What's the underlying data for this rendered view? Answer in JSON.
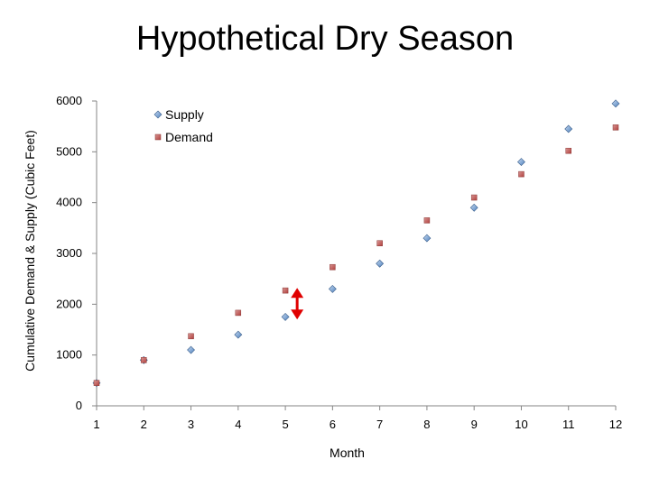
{
  "chart_data": {
    "type": "scatter",
    "title": "Hypothetical Dry Season",
    "xlabel": "Month",
    "ylabel": "Cumulative Demand & Supply (Cubic Feet)",
    "x": [
      1,
      2,
      3,
      4,
      5,
      6,
      7,
      8,
      9,
      10,
      11,
      12
    ],
    "xticks": [
      "1",
      "2",
      "3",
      "4",
      "5",
      "6",
      "7",
      "8",
      "9",
      "10",
      "11",
      "12"
    ],
    "yticks": [
      "0",
      "1000",
      "2000",
      "3000",
      "4000",
      "5000",
      "6000"
    ],
    "xlim": [
      1,
      12
    ],
    "ylim": [
      0,
      6000
    ],
    "grid": false,
    "legend_position": "top-left",
    "series": [
      {
        "name": "Supply",
        "marker": "diamond",
        "color": "#4f81bd",
        "values": [
          450,
          900,
          1100,
          1400,
          1750,
          2300,
          2800,
          3300,
          3900,
          4800,
          5450,
          5950
        ]
      },
      {
        "name": "Demand",
        "marker": "square",
        "color": "#c0504d",
        "values": [
          450,
          900,
          1370,
          1830,
          2270,
          2730,
          3200,
          3650,
          4100,
          4560,
          5020,
          5480
        ]
      }
    ],
    "annotations": [
      {
        "type": "double-arrow",
        "x": 5.25,
        "y_from": 1700,
        "y_to": 2320,
        "color": "#e00000"
      }
    ]
  }
}
